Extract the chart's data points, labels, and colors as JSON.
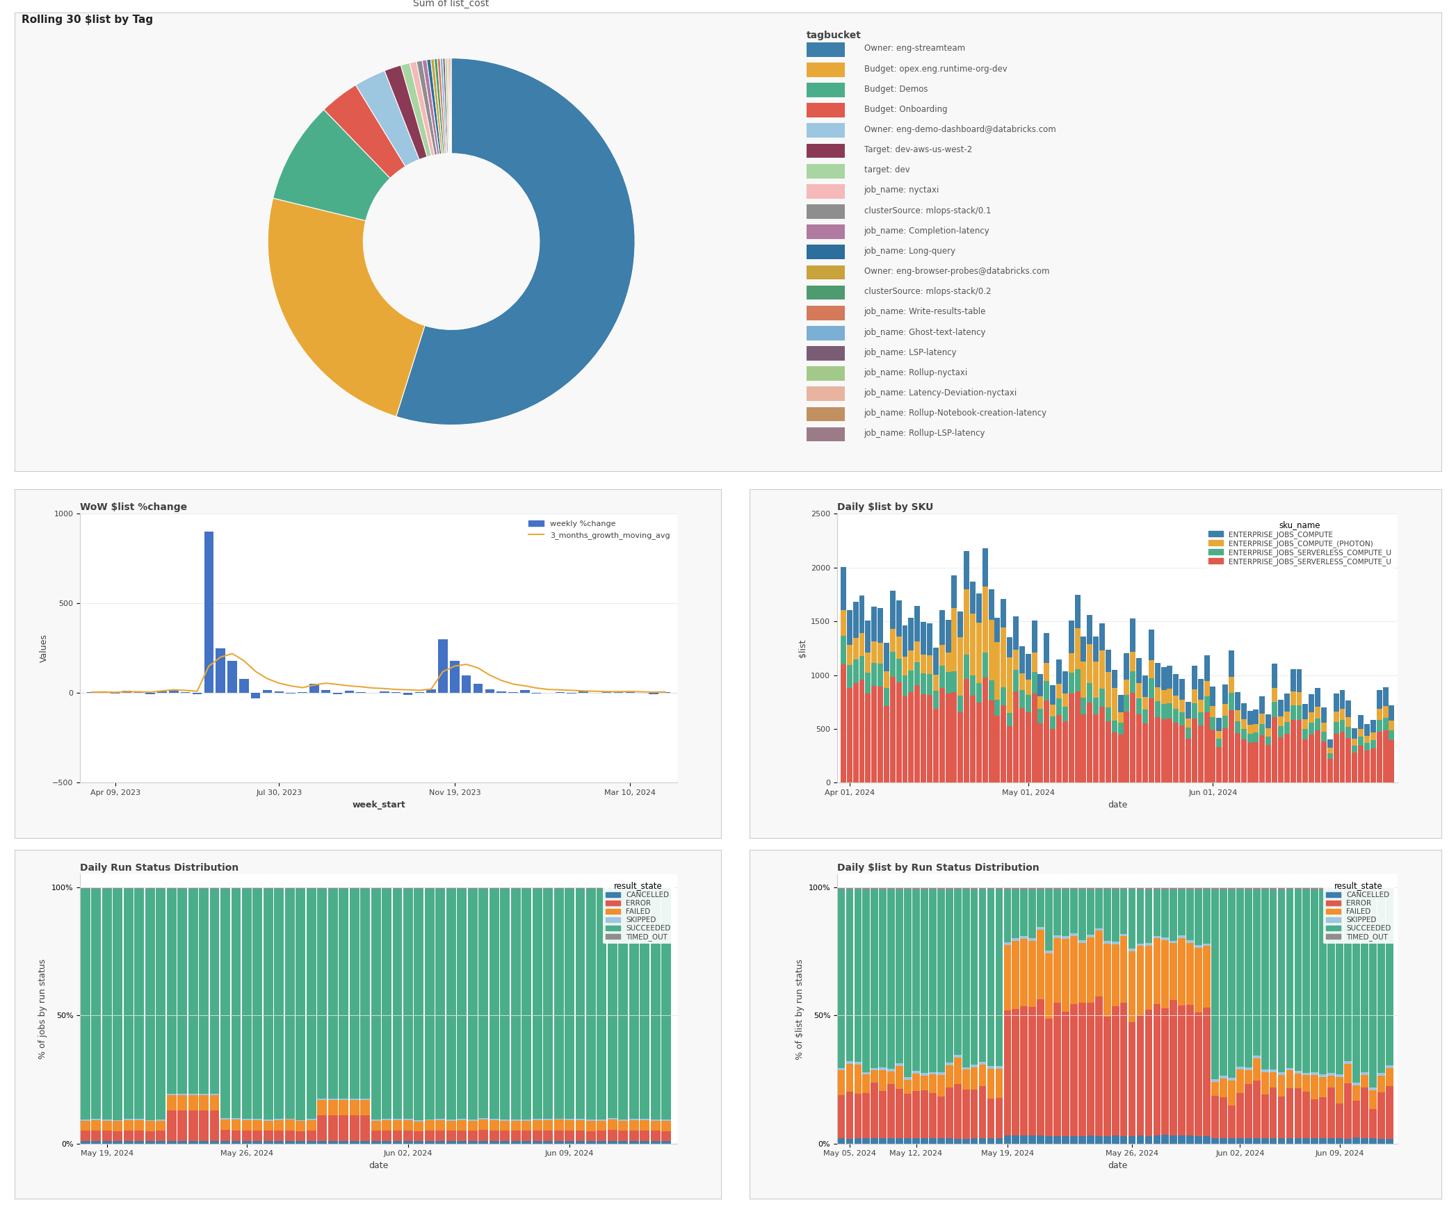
{
  "donut_title": "Rolling 30 $list by Tag",
  "donut_center_label": "Sum of list_cost",
  "donut_slices": [
    {
      "label": "Owner: eng-streamteam",
      "value": 55,
      "color": "#3D7EAA"
    },
    {
      "label": "Budget: opex.eng.runtime-org-dev",
      "value": 24,
      "color": "#E8A838"
    },
    {
      "label": "Budget: Demos",
      "value": 9,
      "color": "#4BAE8A"
    },
    {
      "label": "Budget: Onboarding",
      "value": 3.5,
      "color": "#E05A4E"
    },
    {
      "label": "Owner: eng-demo-dashboard@databricks.com",
      "value": 2.8,
      "color": "#9DC6E0"
    },
    {
      "label": "Target: dev-aws-us-west-2",
      "value": 1.5,
      "color": "#8B3A55"
    },
    {
      "label": "target: dev",
      "value": 0.8,
      "color": "#A8D5A2"
    },
    {
      "label": "job_name: nyctaxi",
      "value": 0.6,
      "color": "#F4B9B8"
    },
    {
      "label": "clusterSource: mlops-stack/0.1",
      "value": 0.5,
      "color": "#8E8E8E"
    },
    {
      "label": "job_name: Completion-latency",
      "value": 0.4,
      "color": "#B07AA1"
    },
    {
      "label": "job_name: Long-query",
      "value": 0.35,
      "color": "#2C6E9C"
    },
    {
      "label": "Owner: eng-browser-probes@databricks.com",
      "value": 0.3,
      "color": "#C8A23A"
    },
    {
      "label": "clusterSource: mlops-stack/0.2",
      "value": 0.28,
      "color": "#4E9B6F"
    },
    {
      "label": "job_name: Write-results-table",
      "value": 0.25,
      "color": "#D4795A"
    },
    {
      "label": "job_name: Ghost-text-latency",
      "value": 0.22,
      "color": "#7BAFD4"
    },
    {
      "label": "job_name: LSP-latency",
      "value": 0.2,
      "color": "#7B5C75"
    },
    {
      "label": "job_name: Rollup-nyctaxi",
      "value": 0.18,
      "color": "#A3C98A"
    },
    {
      "label": "job_name: Latency-Deviation-nyctaxi",
      "value": 0.15,
      "color": "#E8B4A0"
    },
    {
      "label": "job_name: Rollup-Notebook-creation-latency",
      "value": 0.12,
      "color": "#C09060"
    },
    {
      "label": "job_name: Rollup-LSP-latency",
      "value": 0.1,
      "color": "#9B7B88"
    }
  ],
  "wow_title": "WoW $list %change",
  "wow_xlabel": "week_start",
  "wow_ylabel": "Values",
  "wow_legend": [
    "weekly %change",
    "3_months_growth_moving_avg"
  ],
  "wow_bar_color": "#4472C4",
  "wow_line_color": "#E8A838",
  "wow_dates": [
    "Apr 09, 2023",
    "Jul 30, 2023",
    "Nov 19, 2023",
    "Mar 10, 2024"
  ],
  "wow_bar_values": [
    5,
    8,
    -3,
    12,
    6,
    -8,
    10,
    20,
    4,
    -6,
    900,
    250,
    180,
    80,
    -30,
    15,
    8,
    -3,
    6,
    50,
    15,
    -8,
    12,
    6,
    3,
    8,
    6,
    -12,
    4,
    20,
    300,
    180,
    100,
    50,
    20,
    8,
    6,
    15,
    -3,
    3,
    6,
    -3,
    8,
    3,
    5,
    6,
    8,
    3,
    -5,
    6
  ],
  "wow_moving_avg": [
    5,
    6,
    4,
    8,
    7,
    5,
    12,
    18,
    15,
    10,
    150,
    200,
    220,
    180,
    120,
    80,
    55,
    40,
    30,
    45,
    55,
    48,
    40,
    35,
    28,
    25,
    20,
    18,
    15,
    22,
    120,
    150,
    160,
    140,
    100,
    70,
    50,
    40,
    28,
    20,
    18,
    15,
    12,
    10,
    8,
    8,
    9,
    7,
    5,
    6
  ],
  "wow_ylim": [
    -500,
    1000
  ],
  "wow_yticks": [
    -500,
    0,
    500,
    1000
  ],
  "sku_title": "Daily $list by SKU",
  "sku_xlabel": "date",
  "sku_ylabel": "$list",
  "sku_dates": [
    "Apr 01, 2024",
    "May 01, 2024",
    "Jun 01, 2024"
  ],
  "sku_colors": [
    "#3D7EAA",
    "#E8A838",
    "#4BAE8A",
    "#E05A4E"
  ],
  "sku_legend": [
    "ENTERPRISE_JOBS_COMPUTE",
    "ENTERPRISE_JOBS_COMPUTE_(PHOTON)",
    "ENTERPRISE_JOBS_SERVERLESS_COMPUTE_U",
    "ENTERPRISE_JOBS_SERVERLESS_COMPUTE_U"
  ],
  "sku_ylim": [
    0,
    2500
  ],
  "run_status_title": "Daily Run Status Distribution",
  "run_status_xlabel": "date",
  "run_status_ylabel": "% of jobs by run status",
  "run_status_dates": [
    "May 19, 2024",
    "May 26, 2024",
    "Jun 02, 2024",
    "Jun 09, 2024"
  ],
  "run_status_legend": [
    "CANCELLED",
    "ERROR",
    "FAILED",
    "SKIPPED",
    "SUCCEEDED",
    "TIMED_OUT"
  ],
  "run_status_colors": [
    "#3D7EAA",
    "#E05A4E",
    "#F28E2B",
    "#9DC6E0",
    "#4BAE8A",
    "#8E8E8E"
  ],
  "cost_status_title": "Daily $list by Run Status Distribution",
  "cost_status_xlabel": "date",
  "cost_status_ylabel": "% of $list by run status",
  "cost_status_dates": [
    "May 05, 2024",
    "May 12, 2024",
    "May 19, 2024",
    "May 26, 2024",
    "Jun 02, 2024",
    "Jun 09, 2024"
  ],
  "cost_status_legend": [
    "CANCELLED",
    "ERROR",
    "FAILED",
    "SKIPPED",
    "SUCCEEDED",
    "TIMED_OUT"
  ],
  "cost_status_colors": [
    "#3D7EAA",
    "#E05A4E",
    "#F28E2B",
    "#9DC6E0",
    "#4BAE8A",
    "#8E8E8E"
  ],
  "bg_color": "#FFFFFF",
  "panel_bg": "#F8F8F8",
  "text_color": "#404040",
  "grid_color": "#E8E8E8",
  "border_color": "#CCCCCC"
}
